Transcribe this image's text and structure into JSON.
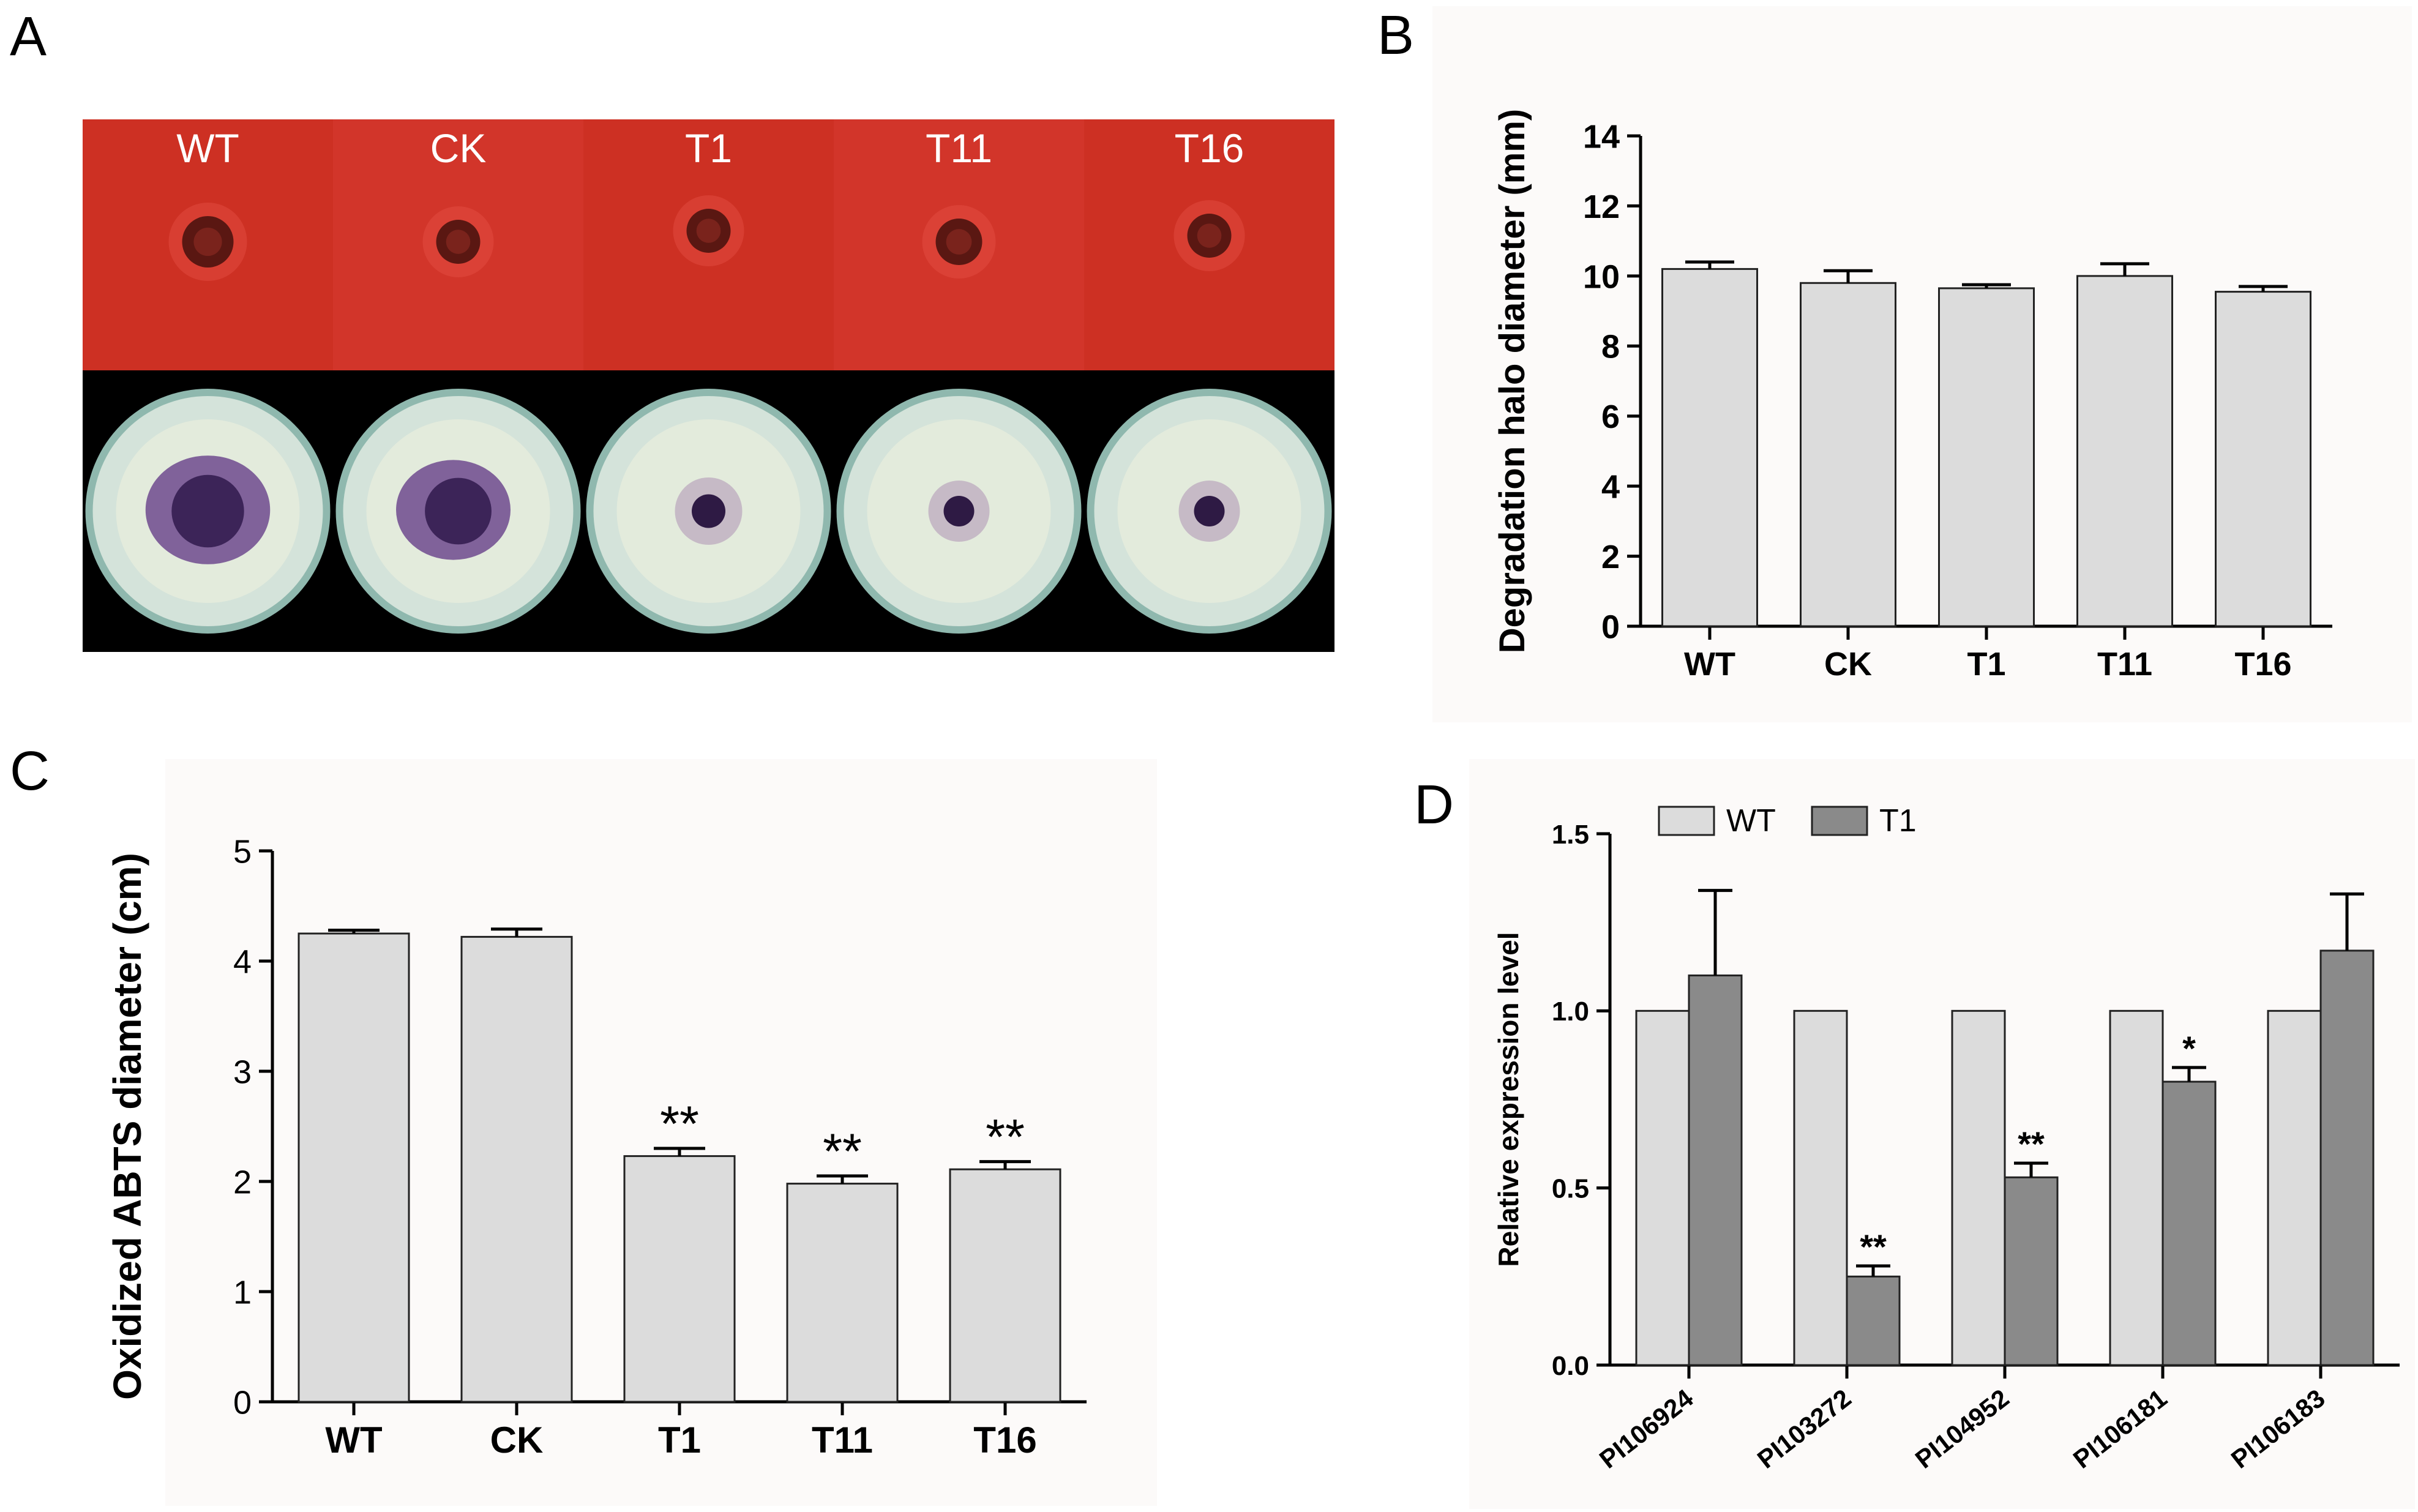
{
  "panels": {
    "A": {
      "letter": "A",
      "strain_labels": [
        "WT",
        "CK",
        "T1",
        "T11",
        "T16"
      ],
      "top_plate_color": "#d43225",
      "bottom_plate_color": "#c9dcd2",
      "stain_color": "#4a2a6a"
    },
    "B": {
      "letter": "B"
    },
    "C": {
      "letter": "C"
    },
    "D": {
      "letter": "D"
    }
  },
  "colors": {
    "bar_light": "#dcdcdc",
    "bar_dark": "#8a8a8a",
    "axis": "#000000",
    "panel_bg": "#fcfaf9"
  },
  "chart_data": [
    {
      "id": "B",
      "type": "bar",
      "categories": [
        "WT",
        "CK",
        "T1",
        "T11",
        "T16"
      ],
      "values": [
        10.2,
        9.8,
        9.65,
        10.0,
        9.55
      ],
      "errors": [
        0.2,
        0.35,
        0.1,
        0.35,
        0.15
      ],
      "annotations": [
        "",
        "",
        "",
        "",
        ""
      ],
      "ylabel": "Degradation halo diameter (mm)",
      "ylim": [
        0,
        14
      ],
      "yticks": [
        0,
        2,
        4,
        6,
        8,
        10,
        12,
        14
      ],
      "ytick_labels": [
        "0",
        "2",
        "4",
        "6",
        "8",
        "10",
        "12",
        "14"
      ]
    },
    {
      "id": "C",
      "type": "bar",
      "categories": [
        "WT",
        "CK",
        "T1",
        "T11",
        "T16"
      ],
      "values": [
        4.25,
        4.22,
        2.23,
        1.98,
        2.11
      ],
      "errors": [
        0.03,
        0.07,
        0.07,
        0.07,
        0.07
      ],
      "annotations": [
        "",
        "",
        "**",
        "**",
        "**"
      ],
      "ylabel": "Oxidized ABTS diameter (cm)",
      "ylim": [
        0,
        5
      ],
      "yticks": [
        0,
        1,
        2,
        3,
        4,
        5
      ],
      "ytick_labels": [
        "0",
        "1",
        "2",
        "3",
        "4",
        "5"
      ]
    },
    {
      "id": "D",
      "type": "bar",
      "categories": [
        "PI106924",
        "PI103272",
        "PI104952",
        "PI106181",
        "PI106183"
      ],
      "series": [
        {
          "name": "WT",
          "values": [
            1.0,
            1.0,
            1.0,
            1.0,
            1.0
          ],
          "errors": [
            0,
            0,
            0,
            0,
            0
          ],
          "annotations": [
            "",
            "",
            "",
            "",
            ""
          ]
        },
        {
          "name": "T1",
          "values": [
            1.1,
            0.25,
            0.53,
            0.8,
            1.17
          ],
          "errors": [
            0.24,
            0.03,
            0.04,
            0.04,
            0.16
          ],
          "annotations": [
            "",
            "**",
            "**",
            "*",
            ""
          ]
        }
      ],
      "ylabel": "Relative expression level",
      "ylim": [
        0,
        1.5
      ],
      "yticks": [
        0,
        0.5,
        1.0,
        1.5
      ],
      "ytick_labels": [
        "0.0",
        "0.5",
        "1.0",
        "1.5"
      ],
      "legend": "top-left"
    }
  ]
}
